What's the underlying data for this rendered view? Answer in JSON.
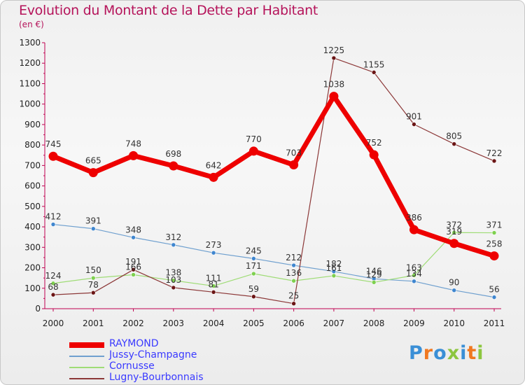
{
  "title": "Evolution du Montant de la Dette par Habitant",
  "subtitle": "(en €)",
  "logo": {
    "text": "Proxiti",
    "colors": [
      "#3a8fd6",
      "#f07820",
      "#3a8fd6",
      "#8cc63f",
      "#3a8fd6",
      "#f07820",
      "#8cc63f"
    ]
  },
  "chart_data": {
    "type": "line",
    "x": [
      "2000",
      "2001",
      "2002",
      "2003",
      "2004",
      "2005",
      "2006",
      "2007",
      "2008",
      "2009",
      "2010",
      "2011"
    ],
    "ylim": [
      0,
      1300
    ],
    "yticks": [
      0,
      100,
      200,
      300,
      400,
      500,
      600,
      700,
      800,
      900,
      1000,
      1100,
      1200,
      1300
    ],
    "grid": false,
    "legend_position": "bottom-left",
    "series": [
      {
        "name": "Jussy-Champagne",
        "color": "#6fa0cf",
        "marker": "#3f86cf",
        "width": 1.2,
        "r": 3,
        "values": [
          412,
          391,
          348,
          312,
          273,
          245,
          212,
          182,
          146,
          134,
          90,
          56
        ],
        "labels": [
          "412",
          "391",
          "348",
          "312",
          "273",
          "245",
          "212",
          "182",
          "146",
          "134",
          "90",
          "56"
        ]
      },
      {
        "name": "Cornusse",
        "color": "#9fdc76",
        "marker": "#7ed04f",
        "width": 1.2,
        "r": 3,
        "values": [
          124,
          150,
          166,
          138,
          111,
          171,
          136,
          161,
          129,
          163,
          372,
          371
        ],
        "labels": [
          "124",
          "150",
          "166",
          "138",
          "111",
          "171",
          "136",
          "161",
          "129",
          "163",
          "372",
          "371"
        ]
      },
      {
        "name": "Lugny-Bourbonnais",
        "color": "#8c3838",
        "marker": "#6b1515",
        "width": 1.2,
        "r": 3,
        "values": [
          68,
          78,
          191,
          103,
          81,
          59,
          25,
          1225,
          1155,
          901,
          805,
          722
        ],
        "labels": [
          "68",
          "78",
          "191",
          "103",
          "81",
          "59",
          "25",
          "1225",
          "1155",
          "901",
          "805",
          "722"
        ]
      },
      {
        "name": "RAYMOND",
        "color": "#ee0000",
        "marker": "#ee0000",
        "width": 7,
        "r": 6.5,
        "values": [
          745,
          665,
          748,
          698,
          642,
          770,
          703,
          1038,
          752,
          386,
          319,
          258
        ],
        "labels": [
          "745",
          "665",
          "748",
          "698",
          "642",
          "770",
          "703",
          "1038",
          "752",
          "386",
          "319",
          "258"
        ]
      }
    ],
    "legend_order": [
      "RAYMOND",
      "Jussy-Champagne",
      "Cornusse",
      "Lugny-Bourbonnais"
    ]
  }
}
